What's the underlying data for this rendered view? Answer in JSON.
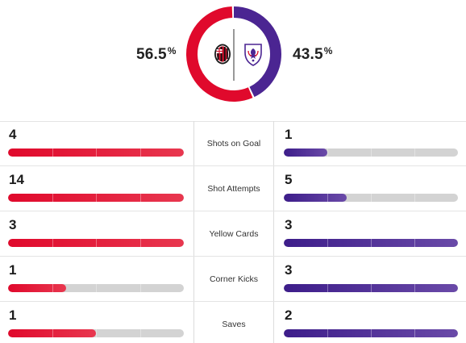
{
  "possession": {
    "home_pct": "56.5",
    "away_pct": "43.5",
    "pct_symbol": "%",
    "home_fraction": 0.565,
    "away_fraction": 0.435,
    "home_color": "#e0092c",
    "away_color": "#4b2592",
    "home_logo": "ac-milan-crest-icon",
    "away_logo": "fiorentina-crest-icon"
  },
  "stats": [
    {
      "label": "Shots on Goal",
      "home": "4",
      "away": "1",
      "home_fill": 1.0,
      "away_fill": 0.25
    },
    {
      "label": "Shot Attempts",
      "home": "14",
      "away": "5",
      "home_fill": 1.0,
      "away_fill": 0.36
    },
    {
      "label": "Yellow Cards",
      "home": "3",
      "away": "3",
      "home_fill": 1.0,
      "away_fill": 1.0
    },
    {
      "label": "Corner Kicks",
      "home": "1",
      "away": "3",
      "home_fill": 0.33,
      "away_fill": 1.0
    },
    {
      "label": "Saves",
      "home": "1",
      "away": "2",
      "home_fill": 0.5,
      "away_fill": 1.0
    }
  ],
  "colors": {
    "home": "#e0092c",
    "away": "#4b2592",
    "track": "#d3d3d3"
  }
}
